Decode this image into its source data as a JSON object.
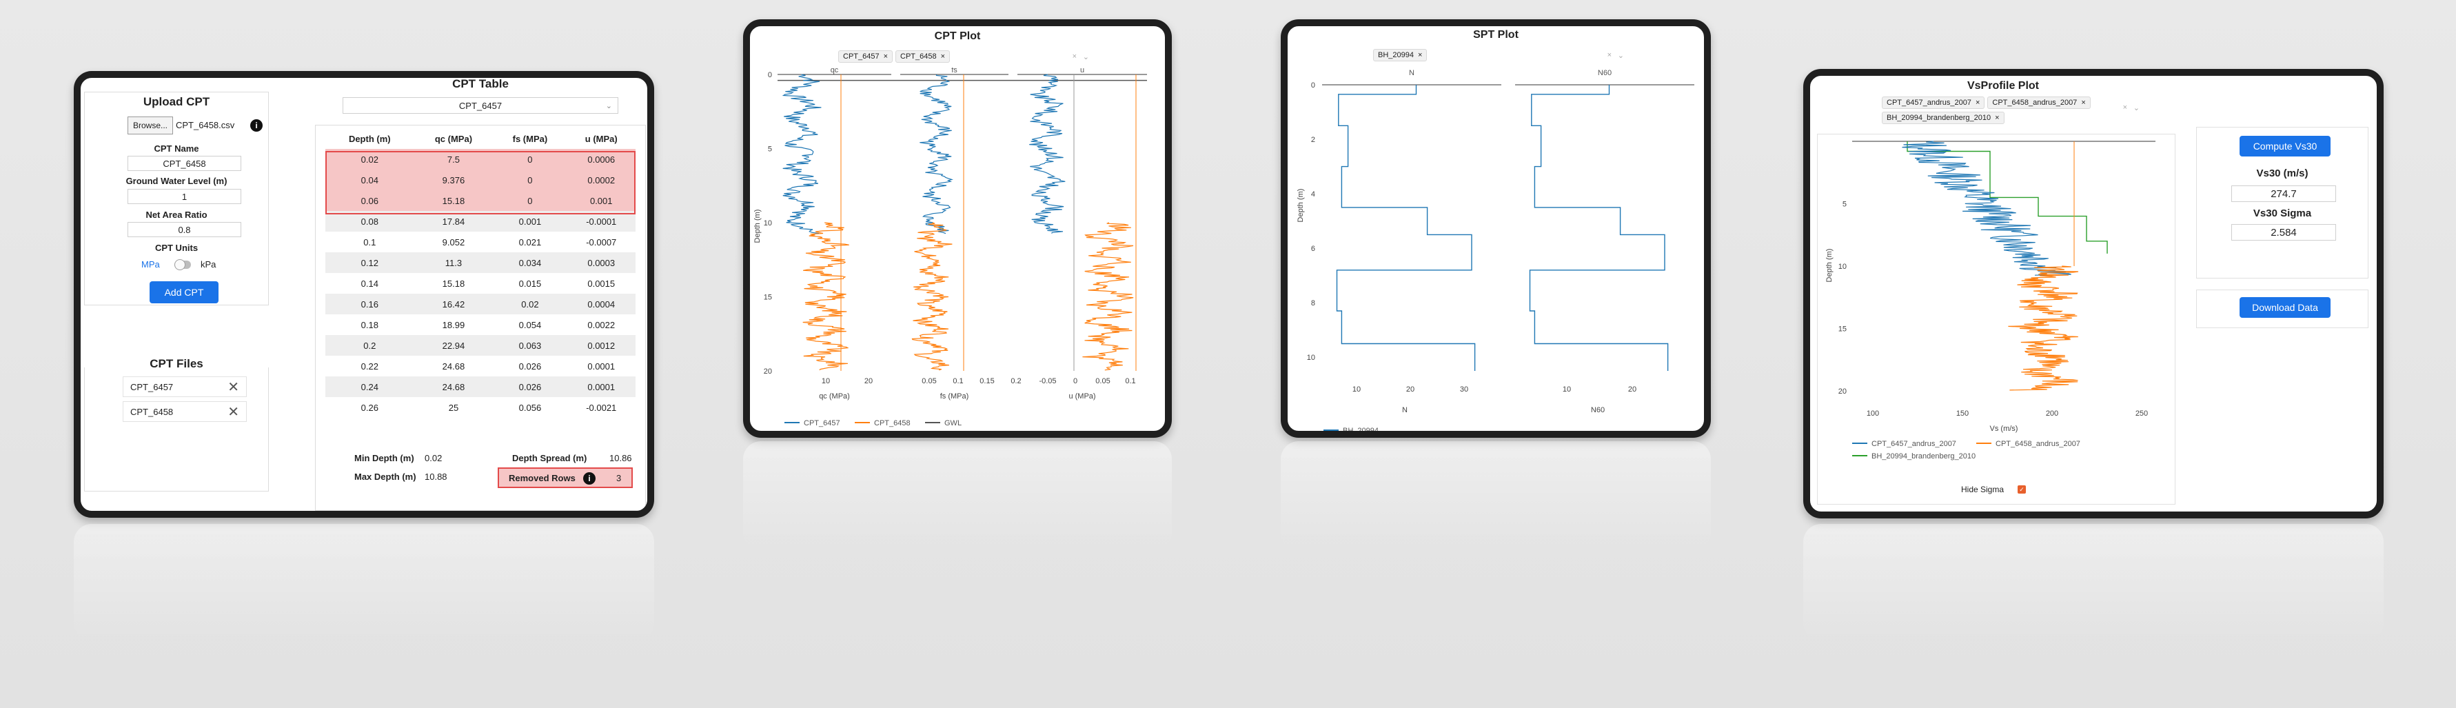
{
  "upload": {
    "title": "Upload CPT",
    "browse_label": "Browse...",
    "file_name": "CPT_6458.csv",
    "cpt_name_label": "CPT Name",
    "cpt_name_value": "CPT_6458",
    "gwl_label": "Ground Water Level (m)",
    "gwl_value": "1",
    "nar_label": "Net Area Ratio",
    "nar_value": "0.8",
    "units_label": "CPT Units",
    "unit_mpa": "MPa",
    "unit_kpa": "kPa",
    "add_button": "Add CPT"
  },
  "files": {
    "title": "CPT Files",
    "items": [
      "CPT_6457",
      "CPT_6458"
    ]
  },
  "cpt_table": {
    "title": "CPT Table",
    "selected": "CPT_6457",
    "headers": [
      "Depth (m)",
      "qc (MPa)",
      "fs (MPa)",
      "u (MPa)"
    ],
    "rows": [
      [
        "0.02",
        "7.5",
        "0",
        "0.0006"
      ],
      [
        "0.04",
        "9.376",
        "0",
        "0.0002"
      ],
      [
        "0.06",
        "15.18",
        "0",
        "0.001"
      ],
      [
        "0.08",
        "17.84",
        "0.001",
        "-0.0001"
      ],
      [
        "0.1",
        "9.052",
        "0.021",
        "-0.0007"
      ],
      [
        "0.12",
        "11.3",
        "0.034",
        "0.0003"
      ],
      [
        "0.14",
        "15.18",
        "0.015",
        "0.0015"
      ],
      [
        "0.16",
        "16.42",
        "0.02",
        "0.0004"
      ],
      [
        "0.18",
        "18.99",
        "0.054",
        "0.0022"
      ],
      [
        "0.2",
        "22.94",
        "0.063",
        "0.0012"
      ],
      [
        "0.22",
        "24.68",
        "0.026",
        "0.0001"
      ],
      [
        "0.24",
        "24.68",
        "0.026",
        "0.0001"
      ],
      [
        "0.26",
        "25",
        "0.056",
        "-0.0021"
      ]
    ],
    "removed_count_rows": 3,
    "min_depth_label": "Min Depth (m)",
    "min_depth": "0.02",
    "max_depth_label": "Max Depth (m)",
    "max_depth": "10.88",
    "depth_spread_label": "Depth Spread (m)",
    "depth_spread": "10.86",
    "removed_rows_label": "Removed Rows",
    "removed_rows": "3"
  },
  "cpt_plot": {
    "title": "CPT Plot",
    "tags": [
      "CPT_6457",
      "CPT_6458"
    ],
    "subplot_titles": [
      "qc",
      "fs",
      "u"
    ],
    "y_label": "Depth (m)",
    "y_ticks": [
      "0",
      "5",
      "10",
      "15",
      "20"
    ],
    "x_titles": [
      "qc (MPa)",
      "fs (MPa)",
      "u (MPa)"
    ],
    "qc_ticks": [
      "10",
      "20"
    ],
    "fs_ticks": [
      "0.05",
      "0.1",
      "0.15",
      "0.2"
    ],
    "u_ticks": [
      "-0.05",
      "0",
      "0.05",
      "0.1"
    ],
    "legend": [
      "CPT_6457",
      "CPT_6458",
      "GWL"
    ],
    "colors": {
      "s1": "#1f77b4",
      "s2": "#ff7f0e",
      "gwl": "#555555"
    }
  },
  "spt_plot": {
    "title": "SPT Plot",
    "tag": "BH_20994",
    "subplot_titles": [
      "N",
      "N60"
    ],
    "y_label": "Depth (m)",
    "y_ticks": [
      "0",
      "2",
      "4",
      "6",
      "8",
      "10"
    ],
    "n_ticks": [
      "10",
      "20",
      "30"
    ],
    "n60_ticks": [
      "10",
      "20"
    ],
    "x_titles": [
      "N",
      "N60"
    ],
    "legend": [
      "BH_20994"
    ]
  },
  "vs_plot": {
    "title": "VsProfile Plot",
    "tags": [
      "CPT_6457_andrus_2007",
      "CPT_6458_andrus_2007",
      "BH_20994_brandenberg_2010"
    ],
    "y_label": "Depth (m)",
    "y_ticks": [
      "5",
      "10",
      "15",
      "20"
    ],
    "x_ticks": [
      "100",
      "150",
      "200",
      "250"
    ],
    "x_title": "Vs (m/s)",
    "legend": [
      "CPT_6457_andrus_2007",
      "CPT_6458_andrus_2007",
      "BH_20994_brandenberg_2010"
    ],
    "hide_sigma_label": "Hide Sigma",
    "compute_button": "Compute Vs30",
    "vs30_label": "Vs30 (m/s)",
    "vs30_value": "274.7",
    "sigma_label": "Vs30 Sigma",
    "sigma_value": "2.584",
    "download_button": "Download Data",
    "colors": {
      "s1": "#1f77b4",
      "s2": "#ff7f0e",
      "s3": "#2ca02c"
    }
  }
}
